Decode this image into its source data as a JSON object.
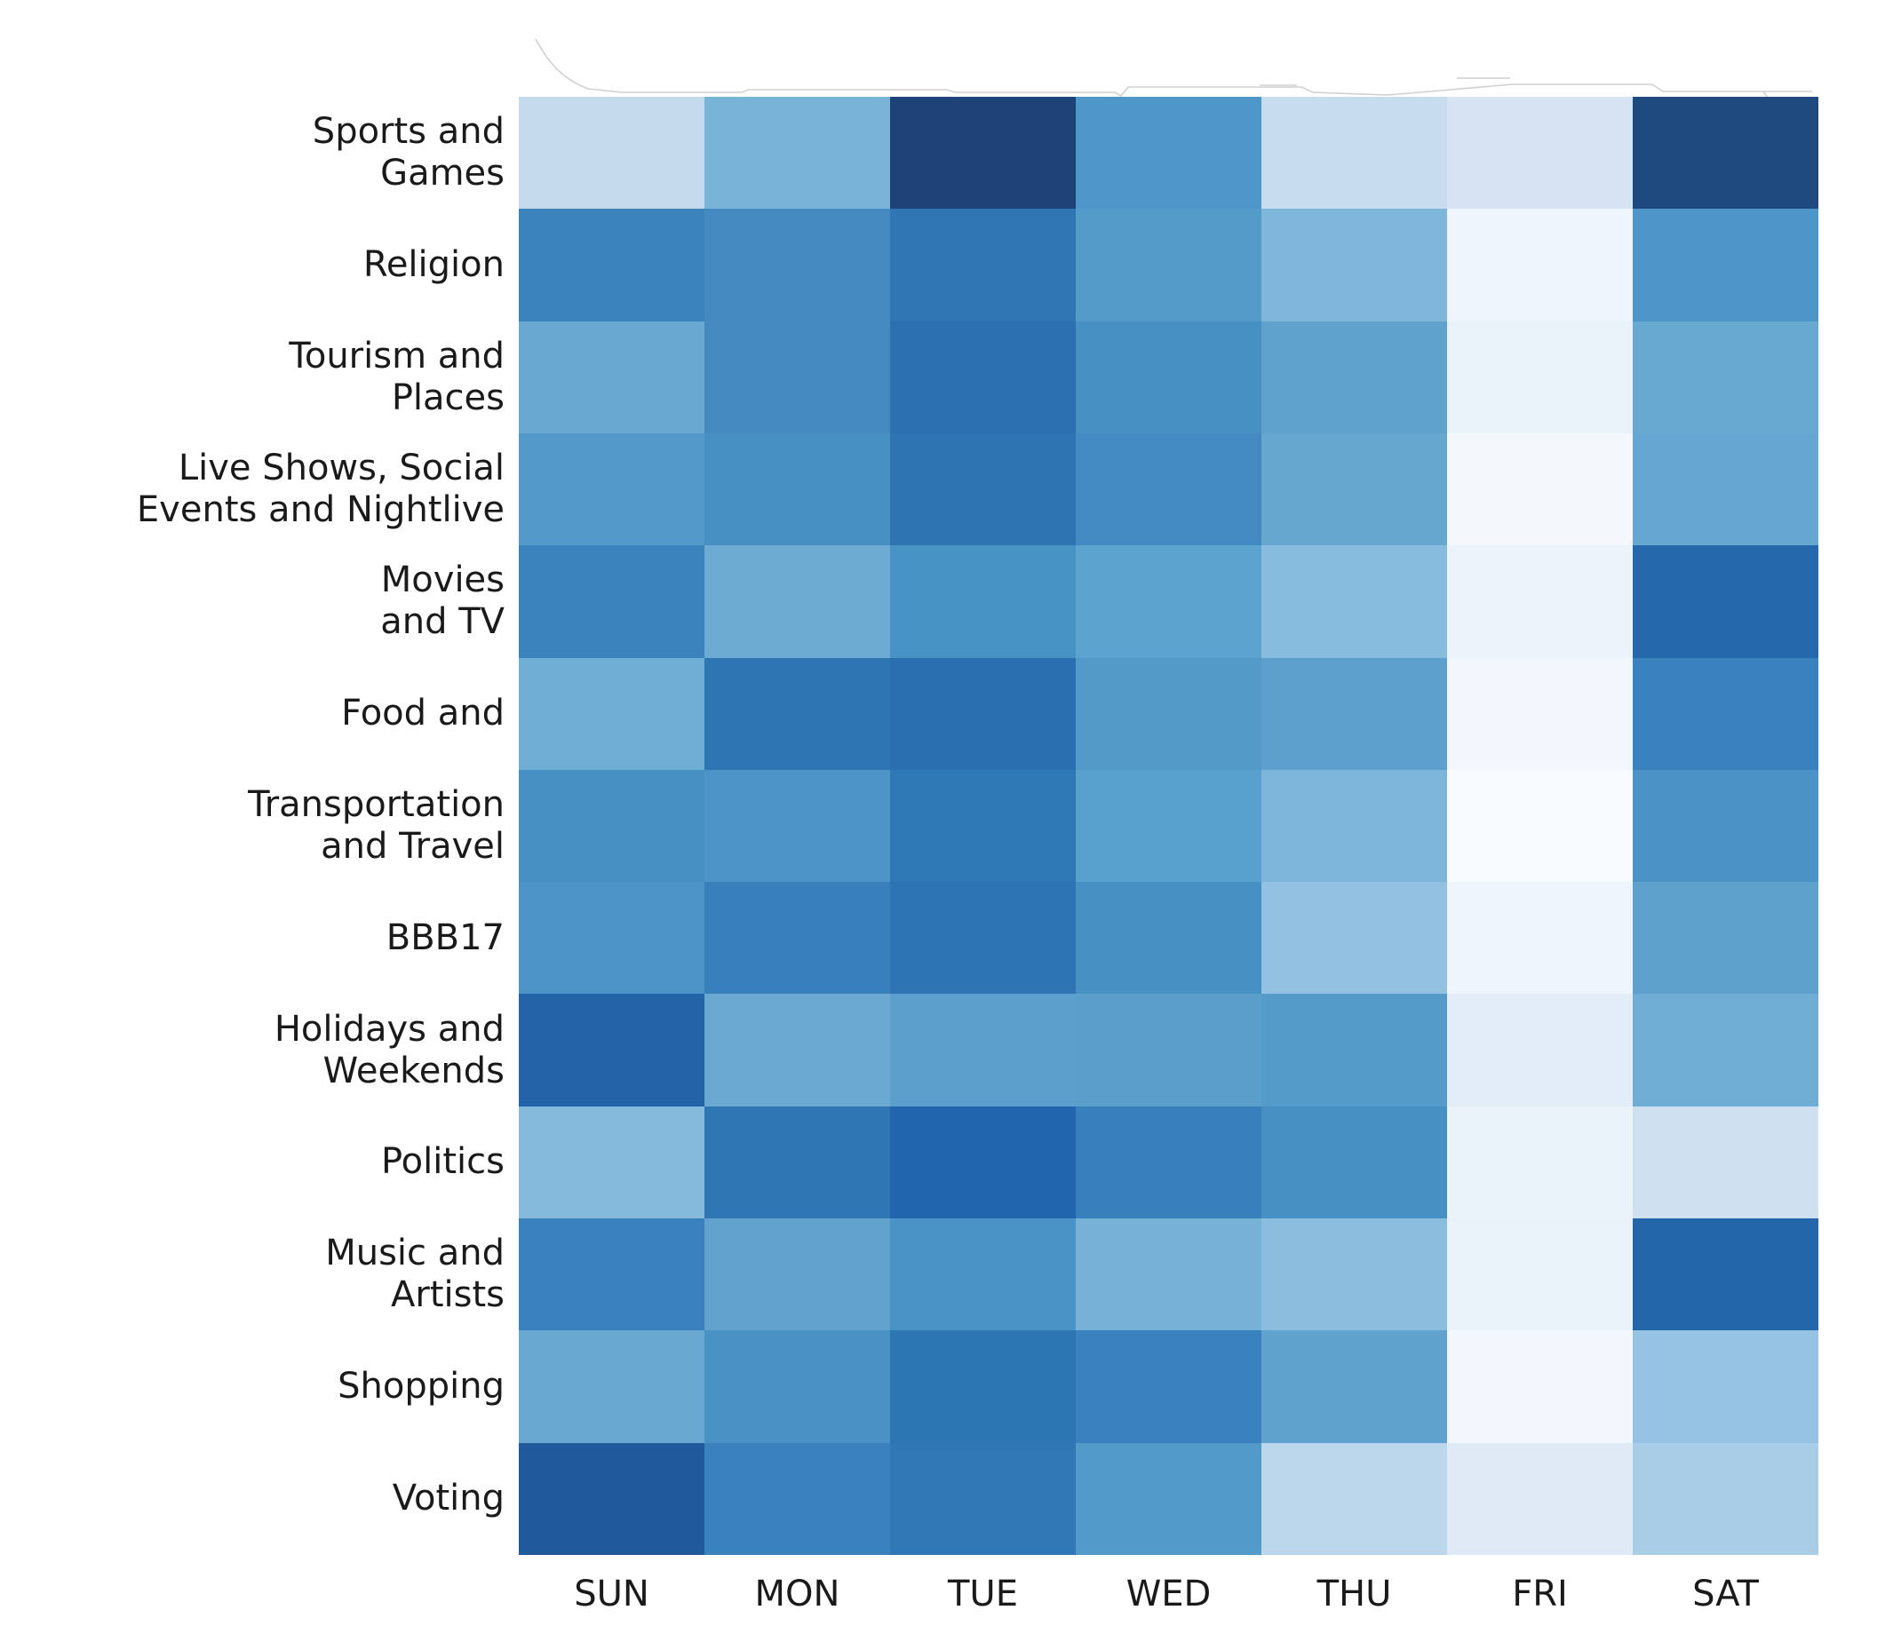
{
  "chart_data": {
    "type": "heatmap",
    "title": "",
    "xlabel": "",
    "ylabel": "",
    "legend": "none",
    "gridlines": false,
    "colormap": "Blues",
    "x_categories": [
      "SUN",
      "MON",
      "TUE",
      "WED",
      "THU",
      "FRI",
      "SAT"
    ],
    "y_categories": [
      "Sports and\nGames",
      "Religion",
      "Tourism and\nPlaces",
      "Live Shows, Social\nEvents and Nightlive",
      "Movies\nand TV",
      "Food and",
      "Transportation\nand Travel",
      "BBB17",
      "Holidays and\nWeekends",
      "Politics",
      "Music and\nArtists",
      "Shopping",
      "Voting"
    ],
    "cell_colors": [
      [
        "#c3d9ec",
        "#79b3d8",
        "#1e4376",
        "#4f97c8",
        "#c8dcef",
        "#d5e3f2",
        "#1e4a7f"
      ],
      [
        "#3b83bd",
        "#4489c0",
        "#3076b5",
        "#549bc9",
        "#7fb6da",
        "#eff5fc",
        "#4e96c7"
      ],
      [
        "#68a8d1",
        "#4489c0",
        "#2c70b1",
        "#4690c4",
        "#5fa2ce",
        "#e9f1f9",
        "#68a9d2"
      ],
      [
        "#539aca",
        "#4690c4",
        "#2e74b3",
        "#428ac1",
        "#66a7d0",
        "#f4f8fd",
        "#66a7d1"
      ],
      [
        "#3b83bd",
        "#6dabd3",
        "#4893c5",
        "#5da3cf",
        "#88bcde",
        "#edf3fb",
        "#2569ac"
      ],
      [
        "#70add4",
        "#2d75b3",
        "#2a70b0",
        "#539ac9",
        "#5da0cd",
        "#f2f7fd",
        "#3a82bd"
      ],
      [
        "#4690c4",
        "#4d95c7",
        "#2f78b6",
        "#58a0cd",
        "#7db5da",
        "#f8fbff",
        "#4b93c6"
      ],
      [
        "#4c94c7",
        "#3780bb",
        "#2c74b3",
        "#4690c4",
        "#92c1e1",
        "#eff5fc",
        "#5ea1cd"
      ],
      [
        "#2263a8",
        "#6ba9d2",
        "#5d9fcc",
        "#5a9ecb",
        "#549bca",
        "#e2edf7",
        "#6fadd5"
      ],
      [
        "#85badd",
        "#2e76b4",
        "#2166ac",
        "#3880bc",
        "#4690c3",
        "#eaf2fa",
        "#cfe0f0"
      ],
      [
        "#3981bc",
        "#61a3ce",
        "#4a93c6",
        "#76b2d8",
        "#8abdde",
        "#e9f1f9",
        "#2366a9"
      ],
      [
        "#68a8d1",
        "#4a92c5",
        "#2d76b4",
        "#3a82bd",
        "#5fa2ce",
        "#f2f7fd",
        "#96c3e3"
      ],
      [
        "#205a9b",
        "#3a82bd",
        "#2f78b5",
        "#529aca",
        "#bcd7ec",
        "#dfeaf6",
        "#a9cde7"
      ]
    ],
    "values_normalized": [
      [
        0.22,
        0.38,
        0.97,
        0.54,
        0.2,
        0.16,
        0.95
      ],
      [
        0.66,
        0.62,
        0.72,
        0.52,
        0.37,
        0.05,
        0.54
      ],
      [
        0.44,
        0.62,
        0.77,
        0.58,
        0.47,
        0.08,
        0.44
      ],
      [
        0.52,
        0.58,
        0.74,
        0.61,
        0.45,
        0.03,
        0.45
      ],
      [
        0.66,
        0.42,
        0.56,
        0.48,
        0.34,
        0.06,
        0.82
      ],
      [
        0.42,
        0.73,
        0.78,
        0.52,
        0.48,
        0.04,
        0.66
      ],
      [
        0.58,
        0.55,
        0.71,
        0.49,
        0.38,
        0.01,
        0.56
      ],
      [
        0.56,
        0.68,
        0.74,
        0.58,
        0.31,
        0.05,
        0.47
      ],
      [
        0.84,
        0.43,
        0.48,
        0.5,
        0.52,
        0.1,
        0.41
      ],
      [
        0.35,
        0.72,
        0.8,
        0.68,
        0.58,
        0.07,
        0.18
      ],
      [
        0.67,
        0.46,
        0.56,
        0.4,
        0.34,
        0.08,
        0.83
      ],
      [
        0.44,
        0.56,
        0.72,
        0.66,
        0.47,
        0.04,
        0.31
      ],
      [
        0.88,
        0.66,
        0.71,
        0.52,
        0.22,
        0.12,
        0.27
      ]
    ]
  },
  "style": {
    "text_color": "#1a1a1a",
    "background": "#ffffff",
    "artifact_line_color": "#a9a9a9"
  }
}
